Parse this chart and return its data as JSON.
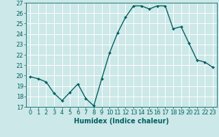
{
  "x": [
    0,
    1,
    2,
    3,
    4,
    5,
    6,
    7,
    8,
    9,
    10,
    11,
    12,
    13,
    14,
    15,
    16,
    17,
    18,
    19,
    20,
    21,
    22,
    23
  ],
  "y": [
    19.9,
    19.7,
    19.4,
    18.3,
    17.6,
    18.4,
    19.2,
    17.8,
    17.1,
    19.7,
    22.2,
    24.1,
    25.6,
    26.7,
    26.7,
    26.4,
    26.7,
    26.7,
    24.5,
    24.7,
    23.1,
    21.5,
    21.3,
    20.8
  ],
  "line_color": "#006060",
  "marker": "D",
  "marker_size": 2.0,
  "xlabel": "Humidex (Indice chaleur)",
  "xlim": [
    -0.5,
    23.5
  ],
  "ylim": [
    17,
    27
  ],
  "yticks": [
    17,
    18,
    19,
    20,
    21,
    22,
    23,
    24,
    25,
    26,
    27
  ],
  "xticks": [
    0,
    1,
    2,
    3,
    4,
    5,
    6,
    7,
    8,
    9,
    10,
    11,
    12,
    13,
    14,
    15,
    16,
    17,
    18,
    19,
    20,
    21,
    22,
    23
  ],
  "xtick_labels": [
    "0",
    "1",
    "2",
    "3",
    "4",
    "5",
    "6",
    "7",
    "8",
    "9",
    "10",
    "11",
    "12",
    "13",
    "14",
    "15",
    "16",
    "17",
    "18",
    "19",
    "20",
    "21",
    "22",
    "23"
  ],
  "bg_color": "#cce8e8",
  "grid_color": "#ffffff",
  "tick_color": "#006060",
  "label_color": "#006060",
  "xlabel_fontsize": 7,
  "tick_fontsize": 6,
  "line_width": 1.0
}
